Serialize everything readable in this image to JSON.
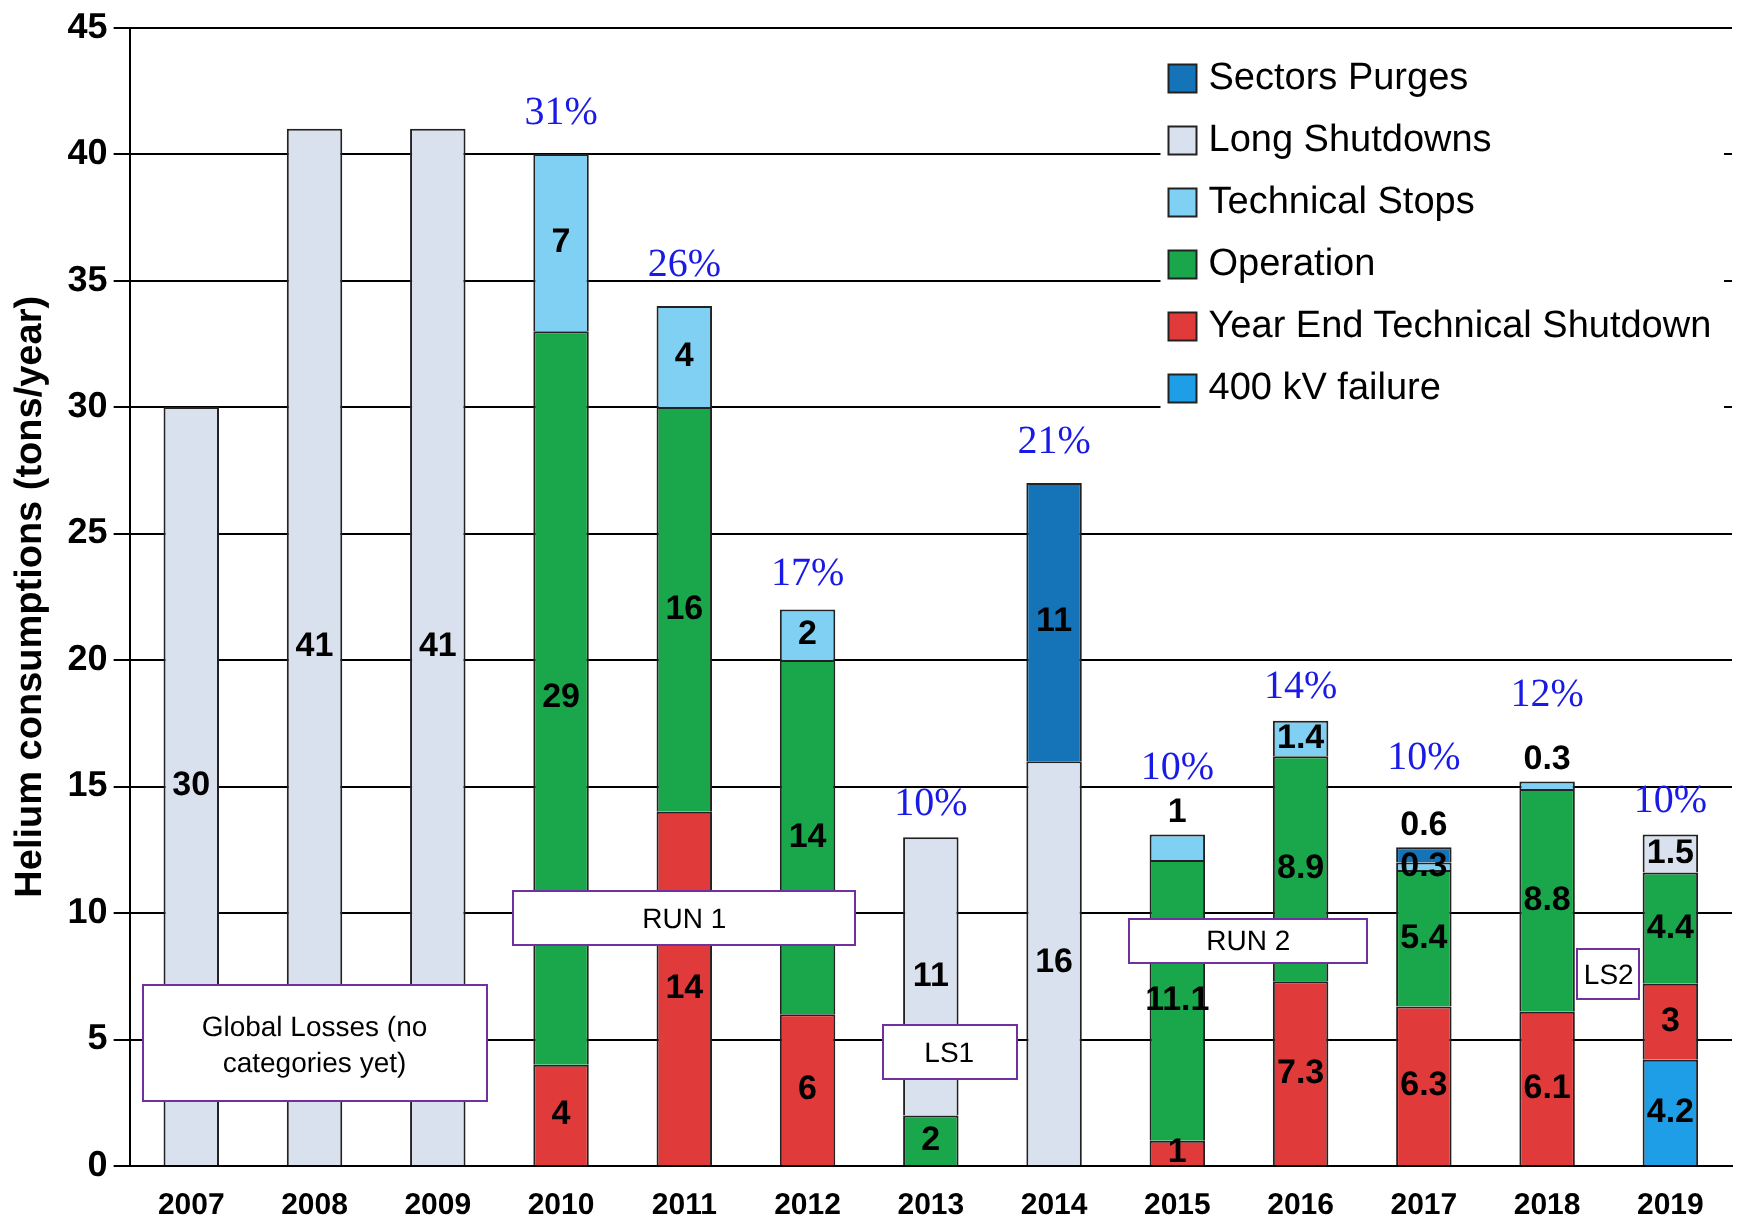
{
  "chart_data": {
    "type": "bar",
    "stacked": true,
    "ylabel": "Helium consumptions (tons/year)",
    "categories": [
      "2007",
      "2008",
      "2009",
      "2010",
      "2011",
      "2012",
      "2013",
      "2014",
      "2015",
      "2016",
      "2017",
      "2018",
      "2019"
    ],
    "series": [
      {
        "name": "400 kV failure",
        "color": "#1e9ee6",
        "values": [
          null,
          null,
          null,
          null,
          null,
          null,
          null,
          null,
          null,
          null,
          null,
          null,
          4.2
        ]
      },
      {
        "name": "Year End Technical Shutdown",
        "color": "#e03a3a",
        "values": [
          null,
          null,
          null,
          4,
          14,
          6,
          null,
          null,
          1,
          7.3,
          6.3,
          6.1,
          3
        ]
      },
      {
        "name": "Operation",
        "color": "#1aa64a",
        "values": [
          null,
          null,
          null,
          29,
          16,
          14,
          2,
          null,
          11.1,
          8.9,
          5.4,
          8.8,
          4.4
        ]
      },
      {
        "name": "Technical Stops",
        "color": "#7fd0f2",
        "values": [
          null,
          null,
          null,
          7,
          4,
          2,
          null,
          null,
          1,
          1.4,
          0.3,
          0.3,
          null
        ]
      },
      {
        "name": "Long Shutdowns",
        "color": "#d9e0ee",
        "values": [
          30,
          41,
          41,
          null,
          null,
          null,
          11,
          16,
          null,
          null,
          null,
          null,
          1.5
        ]
      },
      {
        "name": "Sectors Purges",
        "color": "#1573b8",
        "values": [
          null,
          null,
          null,
          null,
          null,
          null,
          null,
          11,
          null,
          null,
          0.6,
          null,
          null
        ]
      }
    ],
    "ylim": [
      0,
      45
    ],
    "yticks": [
      0,
      5,
      10,
      15,
      20,
      25,
      30,
      35,
      40,
      45
    ],
    "grid": "y",
    "legend": "top right",
    "data_labels": true,
    "annotations": [
      "31%",
      "26%",
      "17%",
      "10%",
      "21%",
      "10%",
      "14%",
      "10%",
      "12%",
      "10%",
      "Global Losses (no categories yet)",
      "RUN 1",
      "LS1",
      "RUN 2",
      "LS2"
    ]
  }
}
